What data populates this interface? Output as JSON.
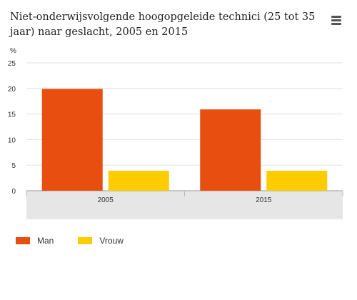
{
  "title": "Niet-onderwijsvolgende hoogopgeleide technici (25 tot 35 jaar) naar geslacht, 2005 en 2015",
  "menu_icon": "hamburger-menu-icon",
  "chart_data": {
    "type": "bar",
    "categories": [
      "2005",
      "2015"
    ],
    "series": [
      {
        "name": "Man",
        "color": "#e84e0f",
        "values": [
          19.9,
          15.9
        ]
      },
      {
        "name": "Vrouw",
        "color": "#ffcc00",
        "values": [
          3.9,
          3.9
        ]
      }
    ],
    "ylabel": "%",
    "ylim": [
      0,
      25
    ],
    "yticks": [
      "0",
      "5",
      "10",
      "15",
      "20",
      "25"
    ],
    "grid": true,
    "legend_position": "bottom-left"
  }
}
